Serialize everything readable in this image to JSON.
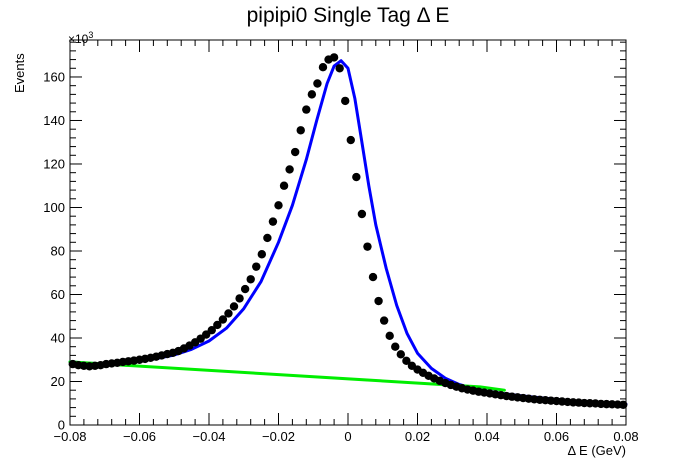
{
  "chart_data": {
    "type": "scatter",
    "title": "pipipi0 Single Tag Δ E",
    "xlabel": "Δ E (GeV)",
    "ylabel": "Events",
    "y_exponent_label": "×10",
    "y_exponent_power": "3",
    "xlim": [
      -0.08,
      0.08
    ],
    "ylim": [
      0,
      177
    ],
    "x_ticks": [
      -0.08,
      -0.06,
      -0.04,
      -0.02,
      0,
      0.02,
      0.04,
      0.06,
      0.08
    ],
    "x_tick_labels": [
      "−0.08",
      "−0.06",
      "−0.04",
      "−0.02",
      "0",
      "0.02",
      "0.04",
      "0.06",
      "0.08"
    ],
    "y_ticks": [
      0,
      20,
      40,
      60,
      80,
      100,
      120,
      140,
      160
    ],
    "y_tick_labels": [
      "0",
      "20",
      "40",
      "60",
      "80",
      "100",
      "120",
      "140",
      "160"
    ],
    "grid": false,
    "series": [
      {
        "kind": "points",
        "color": "#000000",
        "x": [
          -0.0792,
          -0.0776,
          -0.076,
          -0.0744,
          -0.0728,
          -0.0712,
          -0.0696,
          -0.068,
          -0.0664,
          -0.0648,
          -0.0632,
          -0.0616,
          -0.06,
          -0.0584,
          -0.0568,
          -0.0552,
          -0.0536,
          -0.052,
          -0.0504,
          -0.0488,
          -0.0472,
          -0.0456,
          -0.044,
          -0.0424,
          -0.0408,
          -0.0392,
          -0.0376,
          -0.036,
          -0.0344,
          -0.0328,
          -0.0312,
          -0.0296,
          -0.028,
          -0.0264,
          -0.0248,
          -0.0232,
          -0.0216,
          -0.02,
          -0.0184,
          -0.0168,
          -0.0152,
          -0.0136,
          -0.012,
          -0.0104,
          -0.0088,
          -0.0072,
          -0.0056,
          -0.004,
          -0.0024,
          -0.0008,
          0.0008,
          0.0024,
          0.004,
          0.0056,
          0.0072,
          0.0088,
          0.0104,
          0.012,
          0.0136,
          0.0152,
          0.0168,
          0.0184,
          0.02,
          0.0216,
          0.0232,
          0.0248,
          0.0264,
          0.028,
          0.0296,
          0.0312,
          0.0328,
          0.0344,
          0.036,
          0.0376,
          0.0392,
          0.0408,
          0.0424,
          0.044,
          0.0456,
          0.0472,
          0.0488,
          0.0504,
          0.052,
          0.0536,
          0.0552,
          0.0568,
          0.0584,
          0.06,
          0.0616,
          0.0632,
          0.0648,
          0.0664,
          0.068,
          0.0696,
          0.0712,
          0.0728,
          0.0744,
          0.076,
          0.0776,
          0.0792
        ],
        "y": [
          28,
          27.5,
          27.2,
          27,
          27.2,
          27.5,
          28,
          28.3,
          28.6,
          29,
          29.3,
          29.6,
          30,
          30.4,
          30.9,
          31.4,
          32,
          32.6,
          33.2,
          34,
          35.2,
          36.5,
          38,
          39.7,
          41.6,
          43.6,
          46,
          48.5,
          51.3,
          54.5,
          58.2,
          62.5,
          67,
          72.8,
          78.5,
          86,
          93.5,
          101,
          110,
          117.5,
          125.5,
          135.5,
          145,
          152,
          157,
          164.5,
          168,
          169,
          164,
          149,
          131,
          114,
          97,
          82,
          68,
          57,
          48,
          41,
          36,
          32.5,
          29.5,
          27.2,
          25.5,
          24,
          22.6,
          21.4,
          20.3,
          19.3,
          18.4,
          17.6,
          16.9,
          16.3,
          15.8,
          15.3,
          14.9,
          14.5,
          14.1,
          13.7,
          13.3,
          13,
          12.7,
          12.4,
          12.1,
          11.8,
          11.6,
          11.4,
          11.2,
          11,
          10.8,
          10.6,
          10.4,
          10.3,
          10.1,
          10,
          9.9,
          9.7,
          9.6,
          9.5,
          9.4,
          9.3
        ]
      },
      {
        "kind": "line",
        "color": "#0000ff",
        "x": [
          -0.08,
          -0.075,
          -0.07,
          -0.065,
          -0.06,
          -0.055,
          -0.05,
          -0.045,
          -0.04,
          -0.035,
          -0.03,
          -0.025,
          -0.02,
          -0.016,
          -0.012,
          -0.009,
          -0.006,
          -0.004,
          -0.002,
          0,
          0.002,
          0.004,
          0.006,
          0.008,
          0.011,
          0.014,
          0.017,
          0.02,
          0.024,
          0.028,
          0.032,
          0.036,
          0.04,
          0.045,
          0.05,
          0.055,
          0.06,
          0.065,
          0.07,
          0.075,
          0.08
        ],
        "y": [
          29,
          28.4,
          28.2,
          28.6,
          29.4,
          30.6,
          32.2,
          34.8,
          38.6,
          44.5,
          53.5,
          66,
          84,
          101,
          122,
          140,
          157,
          165,
          167.5,
          164,
          150,
          130,
          110,
          92,
          72,
          55,
          42,
          33,
          26,
          21.5,
          18.6,
          16.8,
          15.6,
          14.4,
          13.4,
          12.6,
          11.8,
          11.1,
          10.5,
          10,
          9.5
        ]
      },
      {
        "kind": "line",
        "color": "#00ee00",
        "x": [
          -0.08,
          0.038,
          0.045
        ],
        "y": [
          29,
          17.5,
          16
        ]
      }
    ]
  }
}
